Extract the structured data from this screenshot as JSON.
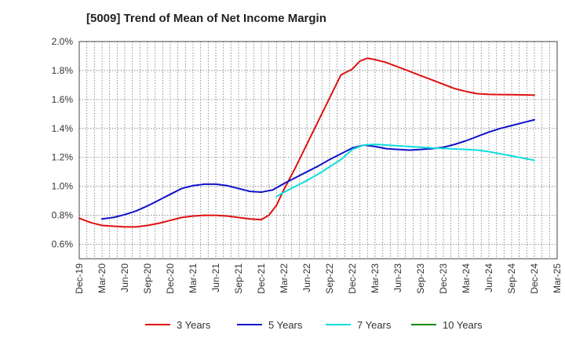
{
  "chart_data": {
    "type": "line",
    "title": "[5009]  Trend of Mean of Net Income Margin",
    "xlabel": "",
    "ylabel": "",
    "ylim": [
      0.5,
      2.0
    ],
    "ytick_values": [
      0.6,
      0.8,
      1.0,
      1.2,
      1.4,
      1.6,
      1.8,
      2.0
    ],
    "ytick_labels": [
      "0.6%",
      "0.8%",
      "1.0%",
      "1.2%",
      "1.4%",
      "1.6%",
      "1.8%",
      "2.0%"
    ],
    "x_labels": [
      "Dec-19",
      "Mar-20",
      "Jun-20",
      "Sep-20",
      "Dec-20",
      "Mar-21",
      "Jun-21",
      "Sep-21",
      "Dec-21",
      "Mar-22",
      "Jun-22",
      "Sep-22",
      "Dec-22",
      "Mar-23",
      "Jun-23",
      "Sep-23",
      "Dec-23",
      "Mar-24",
      "Jun-24",
      "Sep-24",
      "Dec-24",
      "Mar-25"
    ],
    "grid": "dotted",
    "legend_position": "bottom",
    "series": [
      {
        "name": "3 Years",
        "color": "#dd1111",
        "points": [
          [
            0,
            0.78
          ],
          [
            0.5,
            0.75
          ],
          [
            1,
            0.73
          ],
          [
            1.5,
            0.725
          ],
          [
            2,
            0.72
          ],
          [
            2.5,
            0.72
          ],
          [
            3,
            0.73
          ],
          [
            3.5,
            0.745
          ],
          [
            4,
            0.765
          ],
          [
            4.5,
            0.785
          ],
          [
            5,
            0.795
          ],
          [
            5.5,
            0.8
          ],
          [
            6,
            0.8
          ],
          [
            6.5,
            0.795
          ],
          [
            7,
            0.785
          ],
          [
            7.5,
            0.775
          ],
          [
            8,
            0.77
          ],
          [
            8.33,
            0.8
          ],
          [
            8.67,
            0.87
          ],
          [
            9,
            0.98
          ],
          [
            9.5,
            1.13
          ],
          [
            10,
            1.29
          ],
          [
            10.5,
            1.45
          ],
          [
            11,
            1.61
          ],
          [
            11.5,
            1.77
          ],
          [
            12,
            1.81
          ],
          [
            12.33,
            1.865
          ],
          [
            12.67,
            1.885
          ],
          [
            13,
            1.875
          ],
          [
            13.5,
            1.855
          ],
          [
            14,
            1.825
          ],
          [
            14.5,
            1.795
          ],
          [
            15,
            1.765
          ],
          [
            15.5,
            1.735
          ],
          [
            16,
            1.705
          ],
          [
            16.5,
            1.675
          ],
          [
            17,
            1.655
          ],
          [
            17.5,
            1.64
          ],
          [
            18,
            1.635
          ],
          [
            18.5,
            1.634
          ],
          [
            19,
            1.633
          ],
          [
            19.5,
            1.632
          ],
          [
            20,
            1.63
          ]
        ]
      },
      {
        "name": "5 Years",
        "color": "#1111cc",
        "points": [
          [
            1,
            0.775
          ],
          [
            1.5,
            0.785
          ],
          [
            2,
            0.805
          ],
          [
            2.5,
            0.83
          ],
          [
            3,
            0.865
          ],
          [
            3.5,
            0.905
          ],
          [
            4,
            0.945
          ],
          [
            4.5,
            0.985
          ],
          [
            5,
            1.005
          ],
          [
            5.5,
            1.015
          ],
          [
            6,
            1.015
          ],
          [
            6.5,
            1.005
          ],
          [
            7,
            0.985
          ],
          [
            7.5,
            0.965
          ],
          [
            8,
            0.96
          ],
          [
            8.5,
            0.975
          ],
          [
            9,
            1.02
          ],
          [
            9.5,
            1.06
          ],
          [
            10,
            1.1
          ],
          [
            10.5,
            1.14
          ],
          [
            11,
            1.185
          ],
          [
            11.5,
            1.225
          ],
          [
            12,
            1.265
          ],
          [
            12.5,
            1.285
          ],
          [
            13,
            1.275
          ],
          [
            13.5,
            1.26
          ],
          [
            14,
            1.255
          ],
          [
            14.5,
            1.25
          ],
          [
            15,
            1.255
          ],
          [
            15.5,
            1.26
          ],
          [
            16,
            1.27
          ],
          [
            16.5,
            1.29
          ],
          [
            17,
            1.315
          ],
          [
            17.5,
            1.345
          ],
          [
            18,
            1.375
          ],
          [
            18.5,
            1.4
          ],
          [
            19,
            1.42
          ],
          [
            19.5,
            1.44
          ],
          [
            20,
            1.46
          ]
        ]
      },
      {
        "name": "7 Years",
        "color": "#11dddd",
        "points": [
          [
            8.67,
            0.93
          ],
          [
            9,
            0.96
          ],
          [
            9.5,
            1.0
          ],
          [
            10,
            1.04
          ],
          [
            10.5,
            1.085
          ],
          [
            11,
            1.135
          ],
          [
            11.5,
            1.185
          ],
          [
            12,
            1.255
          ],
          [
            12.5,
            1.285
          ],
          [
            13,
            1.29
          ],
          [
            13.5,
            1.285
          ],
          [
            14,
            1.28
          ],
          [
            14.5,
            1.275
          ],
          [
            15,
            1.27
          ],
          [
            15.5,
            1.265
          ],
          [
            16,
            1.262
          ],
          [
            16.5,
            1.258
          ],
          [
            17,
            1.255
          ],
          [
            17.5,
            1.25
          ],
          [
            18,
            1.24
          ],
          [
            18.5,
            1.225
          ],
          [
            19,
            1.21
          ],
          [
            19.5,
            1.195
          ],
          [
            20,
            1.18
          ]
        ]
      },
      {
        "name": "10 Years",
        "color": "#118811",
        "points": []
      }
    ]
  }
}
